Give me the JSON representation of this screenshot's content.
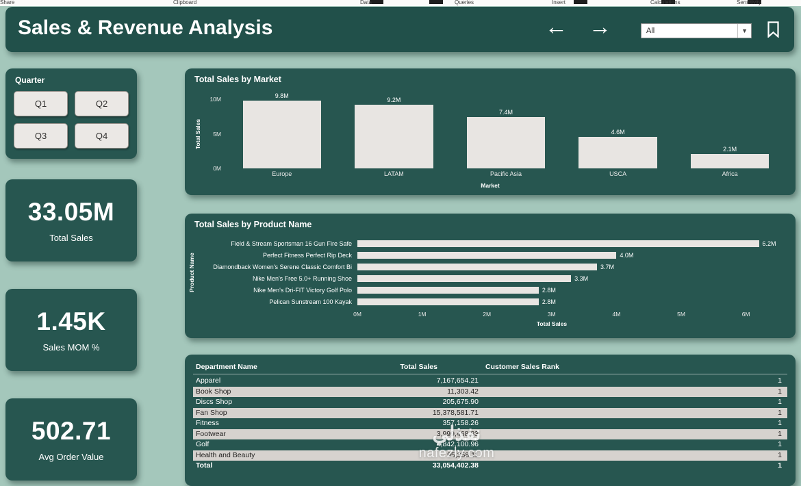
{
  "topbar": {
    "items": [
      "Clipboard",
      "Data",
      "Queries",
      "Insert",
      "Calculations",
      "Sensitivity",
      "Share"
    ]
  },
  "header": {
    "title": "Sales & Revenue Analysis",
    "back_icon": "left-arrow",
    "forward_icon": "right-arrow",
    "bookmark_icon": "bookmark",
    "filter": {
      "value": "All"
    }
  },
  "slicer": {
    "title": "Quarter",
    "options": [
      "Q1",
      "Q2",
      "Q3",
      "Q4"
    ]
  },
  "kpis": [
    {
      "value": "33.05M",
      "label": "Total Sales"
    },
    {
      "value": "1.45K",
      "label": "Sales MOM %"
    },
    {
      "value": "502.71",
      "label": "Avg Order Value"
    }
  ],
  "chart_data": [
    {
      "type": "bar",
      "title": "Total Sales by Market",
      "categories": [
        "Europe",
        "LATAM",
        "Pacific Asia",
        "USCA",
        "Africa"
      ],
      "values": [
        9.8,
        9.2,
        7.4,
        4.6,
        2.1
      ],
      "labels": [
        "9.8M",
        "9.2M",
        "7.4M",
        "4.6M",
        "2.1M"
      ],
      "xlabel": "Market",
      "ylabel": "Total Sales",
      "ylim": [
        0,
        10
      ],
      "yticks": [
        "0M",
        "5M",
        "10M"
      ],
      "legend": "none",
      "grid": false
    },
    {
      "type": "bar-horizontal",
      "title": "Total Sales by Product Name",
      "categories": [
        "Field & Stream Sportsman 16 Gun Fire Safe",
        "Perfect Fitness Perfect Rip Deck",
        "Diamondback Women's Serene Classic Comfort Bi",
        "Nike Men's Free 5.0+ Running Shoe",
        "Nike Men's Dri-FIT Victory Golf Polo",
        "Pelican Sunstream 100 Kayak"
      ],
      "values": [
        6.2,
        4.0,
        3.7,
        3.3,
        2.8,
        2.8
      ],
      "labels": [
        "6.2M",
        "4.0M",
        "3.7M",
        "3.3M",
        "2.8M",
        "2.8M"
      ],
      "xlabel": "Total Sales",
      "ylabel": "Product Name",
      "xlim": [
        0,
        6.5
      ],
      "xticks": [
        "0M",
        "1M",
        "2M",
        "3M",
        "4M",
        "5M",
        "6M"
      ],
      "legend": "none",
      "grid": false
    },
    {
      "type": "table",
      "columns": [
        "Department Name",
        "Total Sales",
        "Customer Sales Rank"
      ],
      "rows": [
        [
          "Apparel",
          "7,167,654.21",
          "1"
        ],
        [
          "Book Shop",
          "11,303.42",
          "1"
        ],
        [
          "Discs Shop",
          "205,675.90",
          "1"
        ],
        [
          "Fan Shop",
          "15,378,581.71",
          "1"
        ],
        [
          "Fitness",
          "357,158.26",
          "1"
        ],
        [
          "Footwear",
          "3,999,468.83",
          "1"
        ],
        [
          "Golf",
          "4,842,100.96",
          "1"
        ],
        [
          "Health and Beauty",
          "95,358.11",
          "1"
        ]
      ],
      "total_row": [
        "Total",
        "33,054,402.38",
        "1"
      ]
    }
  ],
  "watermark": {
    "line1": "نفذلي",
    "line2": "nafezly.com"
  },
  "colors": {
    "card_teal": "#275650",
    "header_teal": "#21504a",
    "background": "#a4c7bb",
    "bar_fill": "#e8e5e2",
    "light_row": "#d6d2ce"
  }
}
